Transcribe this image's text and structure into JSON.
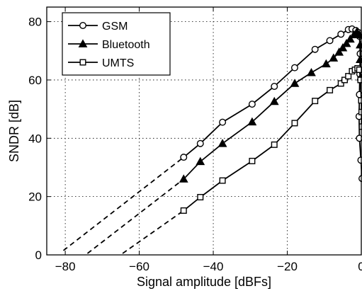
{
  "chart_data": {
    "type": "line",
    "title": "",
    "xlabel": "Signal amplitude [dBFs]",
    "ylabel": "SNDR [dB]",
    "xlim": [
      -85,
      0
    ],
    "ylim": [
      0,
      85
    ],
    "xticks": [
      -80,
      -60,
      -40,
      -20,
      0
    ],
    "yticks": [
      0,
      20,
      40,
      60,
      80
    ],
    "grid": true,
    "legend": "top-left",
    "series": [
      {
        "name": "GSM",
        "marker": "circle",
        "points": [
          [
            -48,
            33.5
          ],
          [
            -43.5,
            38.2
          ],
          [
            -37.5,
            45.5
          ],
          [
            -29.5,
            51.7
          ],
          [
            -23.5,
            57.8
          ],
          [
            -18,
            64.2
          ],
          [
            -12.5,
            70.5
          ],
          [
            -8.5,
            73.5
          ],
          [
            -5.5,
            75.7
          ],
          [
            -3.5,
            77.3
          ],
          [
            -2.5,
            77.5
          ],
          [
            -1.5,
            77
          ],
          [
            -0.8,
            76.3
          ],
          [
            -0.5,
            75
          ],
          [
            -0.3,
            69
          ],
          [
            -0.4,
            62
          ],
          [
            -0.5,
            55
          ],
          [
            -0.6,
            47.5
          ],
          [
            -0.5,
            40
          ],
          [
            -0.1,
            32.5
          ],
          [
            0.2,
            26.2
          ]
        ],
        "extrapolation": [
          [
            -80.5,
            1.5
          ],
          [
            -48,
            33.5
          ]
        ]
      },
      {
        "name": "Bluetooth",
        "marker": "triangle",
        "points": [
          [
            -48,
            26
          ],
          [
            -43.5,
            32
          ],
          [
            -37.5,
            38.2
          ],
          [
            -29.5,
            45.6
          ],
          [
            -23.5,
            52.6
          ],
          [
            -18,
            58.8
          ],
          [
            -13.5,
            62.5
          ],
          [
            -9.5,
            65.5
          ],
          [
            -7.5,
            67.5
          ],
          [
            -6,
            69.5
          ],
          [
            -5,
            71
          ],
          [
            -4,
            72.5
          ],
          [
            -3,
            74
          ],
          [
            -2,
            75.5
          ],
          [
            -1.2,
            76.5
          ],
          [
            -0.5,
            75.5
          ],
          [
            -0.3,
            72
          ],
          [
            -0.3,
            67
          ],
          [
            -0.1,
            61
          ]
        ],
        "extrapolation": [
          [
            -74,
            0.5
          ],
          [
            -48,
            26
          ]
        ]
      },
      {
        "name": "UMTS",
        "marker": "square",
        "points": [
          [
            -48,
            15.2
          ],
          [
            -43.5,
            19.8
          ],
          [
            -37.5,
            25.5
          ],
          [
            -29.5,
            32.2
          ],
          [
            -23.5,
            37.8
          ],
          [
            -18,
            45.2
          ],
          [
            -12.5,
            52.8
          ],
          [
            -8.5,
            56.5
          ],
          [
            -5.5,
            58.8
          ],
          [
            -4.5,
            60
          ],
          [
            -3.5,
            61.3
          ],
          [
            -2.5,
            63
          ],
          [
            -1.7,
            63.5
          ],
          [
            -1,
            64
          ],
          [
            -0.5,
            63.5
          ],
          [
            -0.2,
            60
          ],
          [
            0,
            53
          ],
          [
            0.1,
            49
          ],
          [
            0.2,
            44
          ]
        ],
        "extrapolation": [
          [
            -64.5,
            0.5
          ],
          [
            -48,
            15.2
          ]
        ]
      }
    ]
  }
}
